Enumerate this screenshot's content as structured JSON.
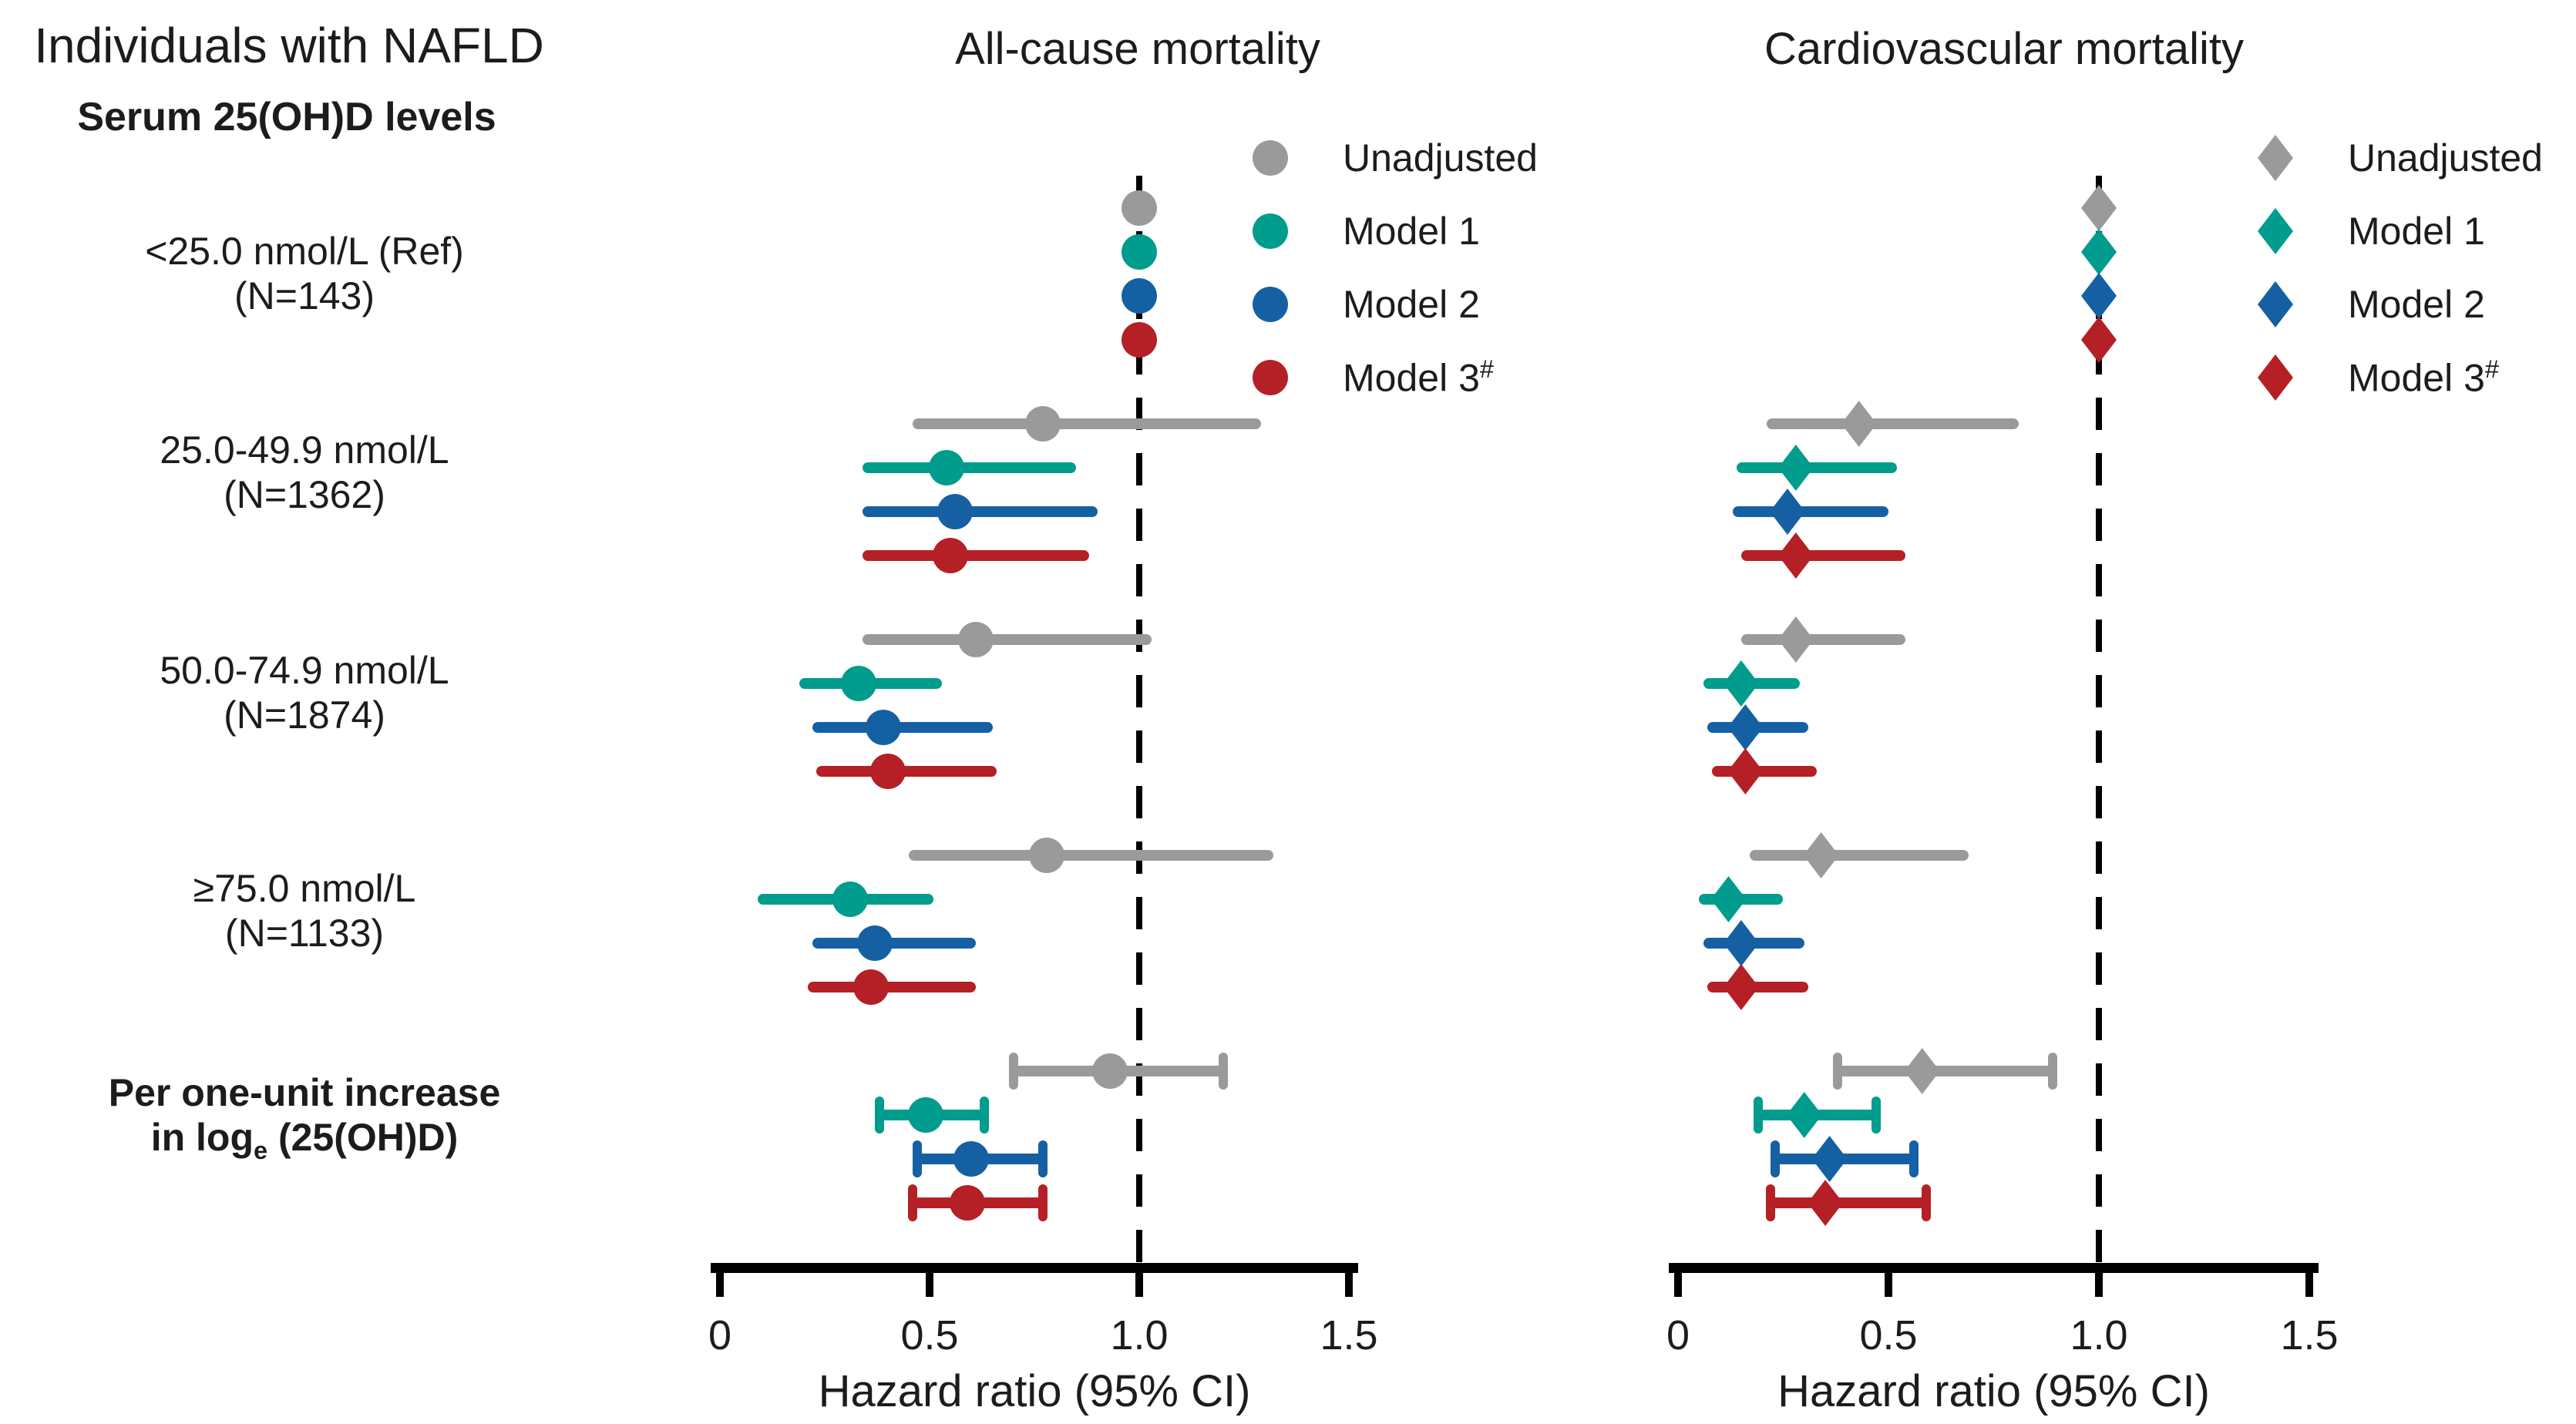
{
  "left_column": {
    "header": "Individuals with NAFLD",
    "subheader": "Serum 25(OH)D levels",
    "groups": [
      {
        "line1": "<25.0 nmol/L (Ref)",
        "line2": "(N=143)",
        "bold": false
      },
      {
        "line1": "25.0-49.9 nmol/L",
        "line2": "(N=1362)",
        "bold": false
      },
      {
        "line1": "50.0-74.9 nmol/L",
        "line2": "(N=1874)",
        "bold": false
      },
      {
        "line1": "≥75.0 nmol/L",
        "line2": "(N=1133)",
        "bold": false
      },
      {
        "line1": "Per one-unit increase",
        "line2_prefix": "in log",
        "line2_sub": "e",
        "line2_suffix": " (25(OH)D)",
        "bold": true
      }
    ]
  },
  "legend": {
    "entries": [
      {
        "label": "Unadjusted",
        "color": "#9B9A9B"
      },
      {
        "label": "Model 1",
        "color": "#009C8D"
      },
      {
        "label": "Model 2",
        "color": "#1560A3"
      },
      {
        "label": "Model 3",
        "sup": "#",
        "color": "#B42025"
      }
    ]
  },
  "chart_data": {
    "type": "forest",
    "x_axis": {
      "label": "Hazard ratio (95% CI)",
      "ticks": [
        "0",
        "0.5",
        "1.0",
        "1.5"
      ],
      "tick_values": [
        0,
        0.5,
        1.0,
        1.5
      ],
      "range": [
        0,
        1.5
      ],
      "reference_line": 1.0
    },
    "models": [
      "Unadjusted",
      "Model 1",
      "Model 2",
      "Model 3#"
    ],
    "panels": [
      {
        "title": "All-cause mortality",
        "marker": "circle",
        "groups": [
          {
            "category": "<25.0 nmol/L (Ref) (N=143)",
            "reference": true,
            "caps": false,
            "estimates": [
              {
                "hr": 1.0
              },
              {
                "hr": 1.0
              },
              {
                "hr": 1.0
              },
              {
                "hr": 1.0
              }
            ]
          },
          {
            "category": "25.0-49.9 nmol/L (N=1362)",
            "caps": false,
            "estimates": [
              {
                "hr": 0.77,
                "lo": 0.46,
                "hi": 1.29
              },
              {
                "hr": 0.54,
                "lo": 0.34,
                "hi": 0.85
              },
              {
                "hr": 0.56,
                "lo": 0.34,
                "hi": 0.9
              },
              {
                "hr": 0.55,
                "lo": 0.34,
                "hi": 0.88
              }
            ]
          },
          {
            "category": "50.0-74.9 nmol/L (N=1874)",
            "caps": false,
            "estimates": [
              {
                "hr": 0.61,
                "lo": 0.34,
                "hi": 1.03
              },
              {
                "hr": 0.33,
                "lo": 0.19,
                "hi": 0.53
              },
              {
                "hr": 0.39,
                "lo": 0.22,
                "hi": 0.65
              },
              {
                "hr": 0.4,
                "lo": 0.23,
                "hi": 0.66
              }
            ]
          },
          {
            "category": "≥75.0 nmol/L (N=1133)",
            "caps": false,
            "estimates": [
              {
                "hr": 0.78,
                "lo": 0.45,
                "hi": 1.32
              },
              {
                "hr": 0.31,
                "lo": 0.09,
                "hi": 0.51
              },
              {
                "hr": 0.37,
                "lo": 0.22,
                "hi": 0.61
              },
              {
                "hr": 0.36,
                "lo": 0.21,
                "hi": 0.61
              }
            ]
          },
          {
            "category": "Per one-unit increase in loge(25(OH)D)",
            "caps": true,
            "estimates": [
              {
                "hr": 0.93,
                "lo": 0.7,
                "hi": 1.2
              },
              {
                "hr": 0.49,
                "lo": 0.38,
                "hi": 0.63
              },
              {
                "hr": 0.6,
                "lo": 0.47,
                "hi": 0.77
              },
              {
                "hr": 0.59,
                "lo": 0.46,
                "hi": 0.77
              }
            ]
          }
        ]
      },
      {
        "title": "Cardiovascular mortality",
        "marker": "diamond",
        "groups": [
          {
            "category": "<25.0 nmol/L (Ref) (N=143)",
            "reference": true,
            "caps": false,
            "estimates": [
              {
                "hr": 1.0
              },
              {
                "hr": 1.0
              },
              {
                "hr": 1.0
              },
              {
                "hr": 1.0
              }
            ]
          },
          {
            "category": "25.0-49.9 nmol/L (N=1362)",
            "caps": false,
            "estimates": [
              {
                "hr": 0.43,
                "lo": 0.21,
                "hi": 0.81
              },
              {
                "hr": 0.28,
                "lo": 0.14,
                "hi": 0.52
              },
              {
                "hr": 0.26,
                "lo": 0.13,
                "hi": 0.5
              },
              {
                "hr": 0.28,
                "lo": 0.15,
                "hi": 0.54
              }
            ]
          },
          {
            "category": "50.0-74.9 nmol/L (N=1874)",
            "caps": false,
            "estimates": [
              {
                "hr": 0.28,
                "lo": 0.15,
                "hi": 0.54
              },
              {
                "hr": 0.15,
                "lo": 0.06,
                "hi": 0.29
              },
              {
                "hr": 0.16,
                "lo": 0.07,
                "hi": 0.31
              },
              {
                "hr": 0.16,
                "lo": 0.08,
                "hi": 0.33
              }
            ]
          },
          {
            "category": "≥75.0 nmol/L (N=1133)",
            "caps": false,
            "estimates": [
              {
                "hr": 0.34,
                "lo": 0.17,
                "hi": 0.69
              },
              {
                "hr": 0.12,
                "lo": 0.05,
                "hi": 0.25
              },
              {
                "hr": 0.15,
                "lo": 0.06,
                "hi": 0.3
              },
              {
                "hr": 0.15,
                "lo": 0.07,
                "hi": 0.31
              }
            ]
          },
          {
            "category": "Per one-unit increase in loge(25(OH)D)",
            "caps": true,
            "estimates": [
              {
                "hr": 0.58,
                "lo": 0.38,
                "hi": 0.89
              },
              {
                "hr": 0.3,
                "lo": 0.19,
                "hi": 0.47
              },
              {
                "hr": 0.36,
                "lo": 0.23,
                "hi": 0.56
              },
              {
                "hr": 0.35,
                "lo": 0.22,
                "hi": 0.59
              }
            ]
          }
        ]
      }
    ]
  }
}
